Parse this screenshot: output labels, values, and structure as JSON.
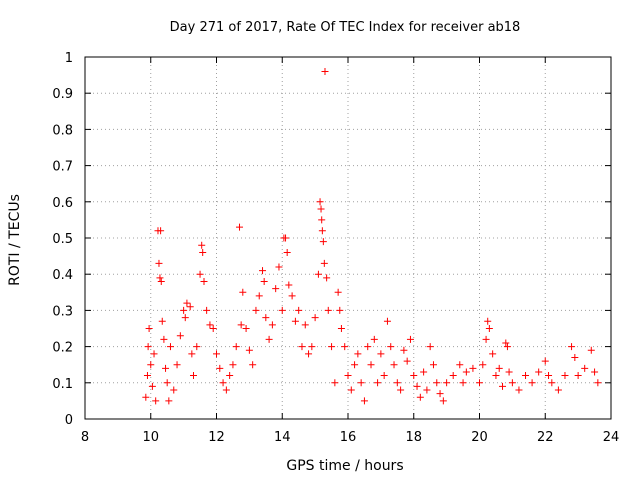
{
  "chart_data": {
    "type": "scatter",
    "title": "Day 271 of 2017, Rate Of TEC Index for receiver ab18",
    "xlabel": "GPS time / hours",
    "ylabel": "ROTI / TECUs",
    "xlim": [
      8,
      24
    ],
    "ylim": [
      0,
      1
    ],
    "xticks": [
      "8",
      "10",
      "12",
      "14",
      "16",
      "18",
      "20",
      "22",
      "24"
    ],
    "yticks": [
      "0",
      "0.1",
      "0.2",
      "0.3",
      "0.4",
      "0.5",
      "0.6",
      "0.7",
      "0.8",
      "0.9",
      "1"
    ],
    "grid": true,
    "marker": "plus",
    "color": "#ff0000",
    "series": [
      {
        "points": [
          [
            9.85,
            0.06
          ],
          [
            9.9,
            0.12
          ],
          [
            9.92,
            0.2
          ],
          [
            9.95,
            0.25
          ],
          [
            10.0,
            0.15
          ],
          [
            10.05,
            0.09
          ],
          [
            10.1,
            0.18
          ],
          [
            10.15,
            0.05
          ],
          [
            10.22,
            0.52
          ],
          [
            10.3,
            0.52
          ],
          [
            10.25,
            0.43
          ],
          [
            10.28,
            0.39
          ],
          [
            10.32,
            0.38
          ],
          [
            10.35,
            0.27
          ],
          [
            10.4,
            0.22
          ],
          [
            10.45,
            0.14
          ],
          [
            10.5,
            0.1
          ],
          [
            10.55,
            0.05
          ],
          [
            10.6,
            0.2
          ],
          [
            10.7,
            0.08
          ],
          [
            10.8,
            0.15
          ],
          [
            10.9,
            0.23
          ],
          [
            11.0,
            0.3
          ],
          [
            11.05,
            0.28
          ],
          [
            11.1,
            0.32
          ],
          [
            11.2,
            0.31
          ],
          [
            11.25,
            0.18
          ],
          [
            11.3,
            0.12
          ],
          [
            11.4,
            0.2
          ],
          [
            11.5,
            0.4
          ],
          [
            11.55,
            0.48
          ],
          [
            11.58,
            0.46
          ],
          [
            11.62,
            0.38
          ],
          [
            11.7,
            0.3
          ],
          [
            11.8,
            0.26
          ],
          [
            11.9,
            0.25
          ],
          [
            12.0,
            0.18
          ],
          [
            12.1,
            0.14
          ],
          [
            12.2,
            0.1
          ],
          [
            12.3,
            0.08
          ],
          [
            12.4,
            0.12
          ],
          [
            12.5,
            0.15
          ],
          [
            12.6,
            0.2
          ],
          [
            12.7,
            0.53
          ],
          [
            12.75,
            0.26
          ],
          [
            12.8,
            0.35
          ],
          [
            12.9,
            0.25
          ],
          [
            13.0,
            0.19
          ],
          [
            13.1,
            0.15
          ],
          [
            13.2,
            0.3
          ],
          [
            13.3,
            0.34
          ],
          [
            13.4,
            0.41
          ],
          [
            13.45,
            0.38
          ],
          [
            13.5,
            0.28
          ],
          [
            13.6,
            0.22
          ],
          [
            13.7,
            0.26
          ],
          [
            13.8,
            0.36
          ],
          [
            13.9,
            0.42
          ],
          [
            14.0,
            0.3
          ],
          [
            14.05,
            0.5
          ],
          [
            14.1,
            0.5
          ],
          [
            14.15,
            0.46
          ],
          [
            14.2,
            0.37
          ],
          [
            14.3,
            0.34
          ],
          [
            14.4,
            0.27
          ],
          [
            14.5,
            0.3
          ],
          [
            14.6,
            0.2
          ],
          [
            14.7,
            0.26
          ],
          [
            14.8,
            0.18
          ],
          [
            14.9,
            0.2
          ],
          [
            15.0,
            0.28
          ],
          [
            15.1,
            0.4
          ],
          [
            15.15,
            0.6
          ],
          [
            15.18,
            0.58
          ],
          [
            15.2,
            0.55
          ],
          [
            15.22,
            0.52
          ],
          [
            15.25,
            0.49
          ],
          [
            15.28,
            0.43
          ],
          [
            15.3,
            0.96
          ],
          [
            15.35,
            0.39
          ],
          [
            15.4,
            0.3
          ],
          [
            15.5,
            0.2
          ],
          [
            15.6,
            0.1
          ],
          [
            15.7,
            0.35
          ],
          [
            15.75,
            0.3
          ],
          [
            15.8,
            0.25
          ],
          [
            15.9,
            0.2
          ],
          [
            16.0,
            0.12
          ],
          [
            16.1,
            0.08
          ],
          [
            16.2,
            0.15
          ],
          [
            16.3,
            0.18
          ],
          [
            16.4,
            0.1
          ],
          [
            16.5,
            0.05
          ],
          [
            16.6,
            0.2
          ],
          [
            16.7,
            0.15
          ],
          [
            16.8,
            0.22
          ],
          [
            16.9,
            0.1
          ],
          [
            17.0,
            0.18
          ],
          [
            17.1,
            0.12
          ],
          [
            17.2,
            0.27
          ],
          [
            17.3,
            0.2
          ],
          [
            17.4,
            0.15
          ],
          [
            17.5,
            0.1
          ],
          [
            17.6,
            0.08
          ],
          [
            17.7,
            0.19
          ],
          [
            17.8,
            0.16
          ],
          [
            17.9,
            0.22
          ],
          [
            18.0,
            0.12
          ],
          [
            18.1,
            0.09
          ],
          [
            18.2,
            0.06
          ],
          [
            18.3,
            0.13
          ],
          [
            18.4,
            0.08
          ],
          [
            18.5,
            0.2
          ],
          [
            18.6,
            0.15
          ],
          [
            18.7,
            0.1
          ],
          [
            18.8,
            0.07
          ],
          [
            18.9,
            0.05
          ],
          [
            19.0,
            0.1
          ],
          [
            19.2,
            0.12
          ],
          [
            19.4,
            0.15
          ],
          [
            19.5,
            0.1
          ],
          [
            19.6,
            0.13
          ],
          [
            19.8,
            0.14
          ],
          [
            20.0,
            0.1
          ],
          [
            20.1,
            0.15
          ],
          [
            20.2,
            0.22
          ],
          [
            20.25,
            0.27
          ],
          [
            20.3,
            0.25
          ],
          [
            20.4,
            0.18
          ],
          [
            20.5,
            0.12
          ],
          [
            20.6,
            0.14
          ],
          [
            20.7,
            0.09
          ],
          [
            20.8,
            0.21
          ],
          [
            20.85,
            0.2
          ],
          [
            20.9,
            0.13
          ],
          [
            21.0,
            0.1
          ],
          [
            21.2,
            0.08
          ],
          [
            21.4,
            0.12
          ],
          [
            21.6,
            0.1
          ],
          [
            21.8,
            0.13
          ],
          [
            22.0,
            0.16
          ],
          [
            22.1,
            0.12
          ],
          [
            22.2,
            0.1
          ],
          [
            22.4,
            0.08
          ],
          [
            22.6,
            0.12
          ],
          [
            22.8,
            0.2
          ],
          [
            22.9,
            0.17
          ],
          [
            23.0,
            0.12
          ],
          [
            23.2,
            0.14
          ],
          [
            23.4,
            0.19
          ],
          [
            23.5,
            0.13
          ],
          [
            23.6,
            0.1
          ]
        ]
      }
    ]
  }
}
